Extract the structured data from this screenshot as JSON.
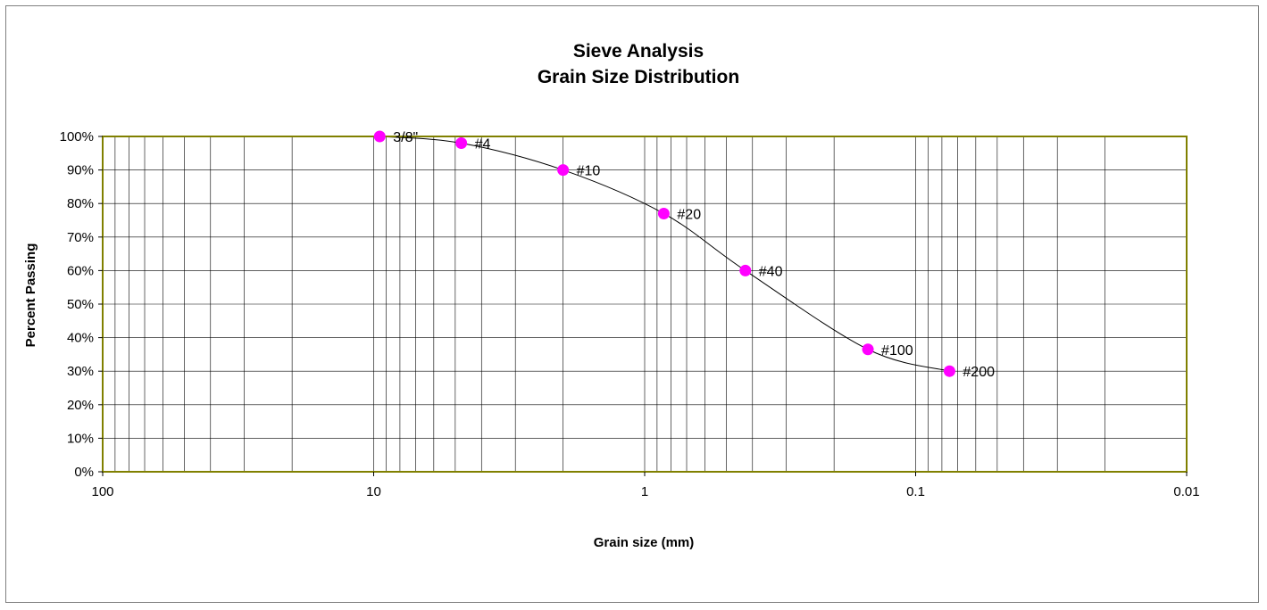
{
  "chart_data": {
    "type": "scatter",
    "title": [
      "Sieve Analysis",
      "Grain Size Distribution"
    ],
    "xlabel": "Grain size (mm)",
    "ylabel": "Percent  Passing",
    "x_scale": "log",
    "x_reversed": true,
    "xlim": [
      100,
      0.01
    ],
    "ylim": [
      0,
      100
    ],
    "x_ticks": [
      100,
      10,
      1,
      0.1,
      0.01
    ],
    "x_tick_labels": [
      "100",
      "10",
      "1",
      "0.1",
      "0.01"
    ],
    "y_ticks": [
      0,
      10,
      20,
      30,
      40,
      50,
      60,
      70,
      80,
      90,
      100
    ],
    "y_tick_labels": [
      "0%",
      "10%",
      "20%",
      "30%",
      "40%",
      "50%",
      "60%",
      "70%",
      "80%",
      "90%",
      "100%"
    ],
    "grid": true,
    "smooth_line": true,
    "points": [
      {
        "label": "3/8\"",
        "x": 9.5,
        "y": 100
      },
      {
        "label": "#4",
        "x": 4.75,
        "y": 98
      },
      {
        "label": "#10",
        "x": 2.0,
        "y": 90
      },
      {
        "label": "#20",
        "x": 0.85,
        "y": 77
      },
      {
        "label": "#40",
        "x": 0.425,
        "y": 60
      },
      {
        "label": "#100",
        "x": 0.15,
        "y": 36.5
      },
      {
        "label": "#200",
        "x": 0.075,
        "y": 30
      }
    ],
    "colors": {
      "marker": "#ff00ff",
      "plot_border": "#808000",
      "grid": "#000000",
      "curve": "#000000"
    }
  }
}
